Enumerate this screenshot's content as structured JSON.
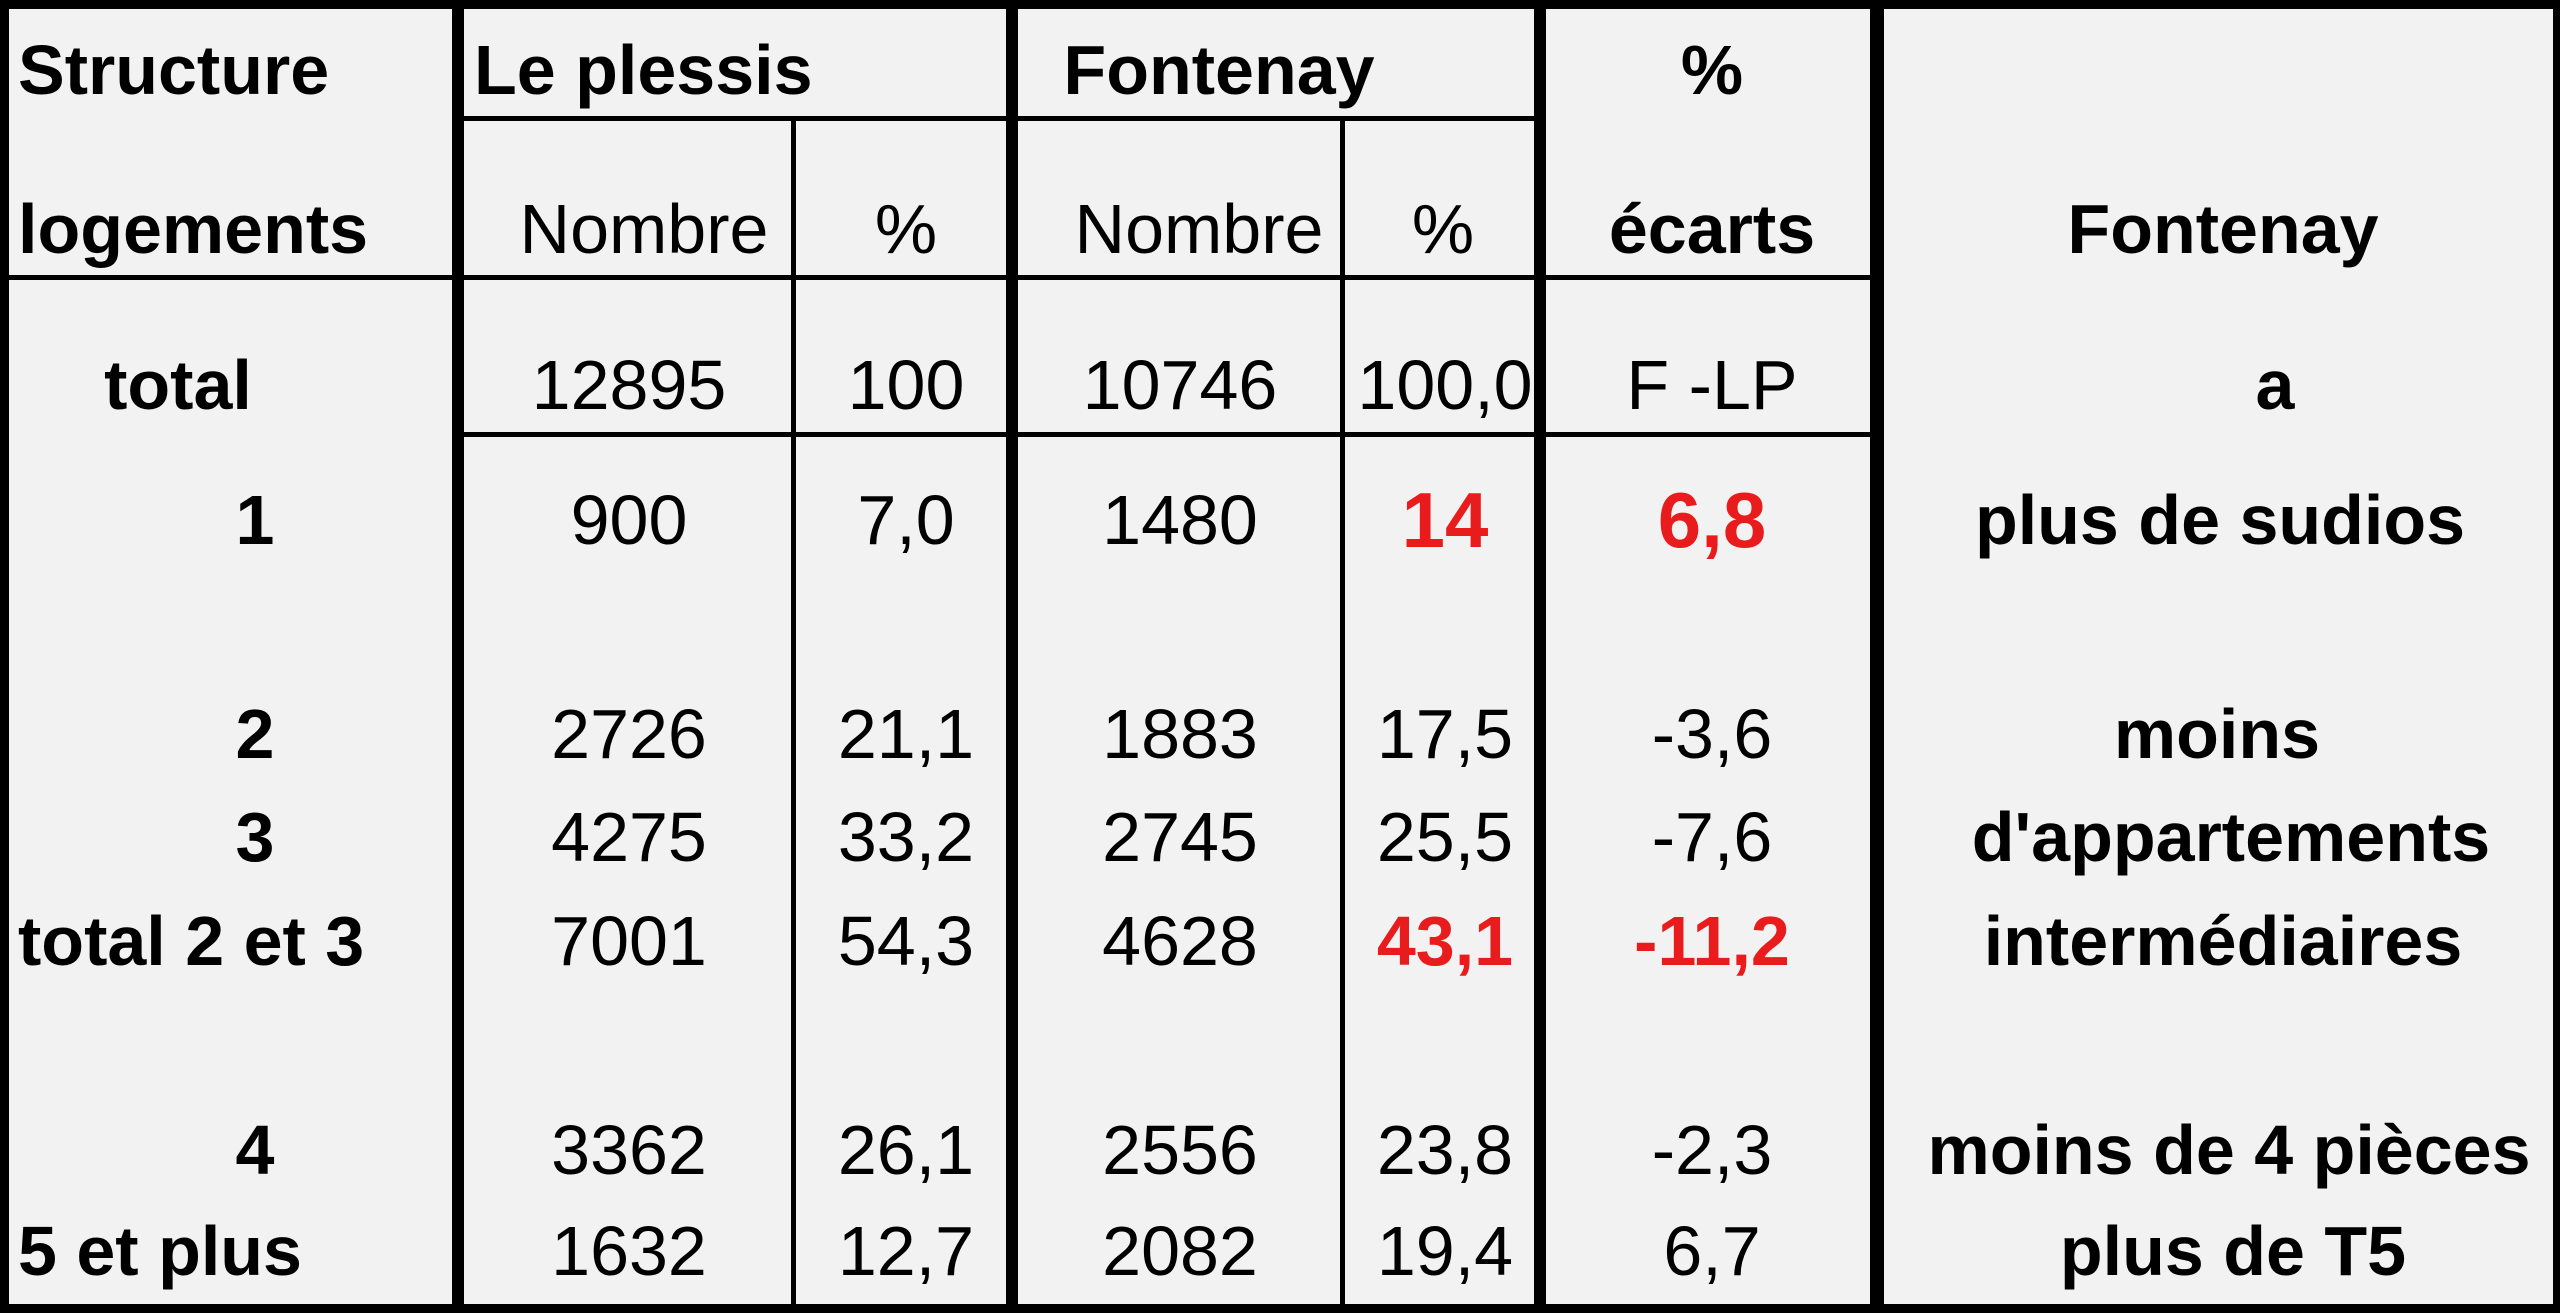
{
  "headers": {
    "structure_line1": "Structure",
    "structure_line2": "logements",
    "le_plessis": "Le plessis",
    "fontenay": "Fontenay",
    "pct_line1": "%",
    "pct_line2": "écarts",
    "lp_nombre": "Nombre",
    "lp_pct": "%",
    "f_nombre": "Nombre",
    "f_pct": "%",
    "comment": "Fontenay"
  },
  "total_row": {
    "label": "total",
    "lp_nombre": "12895",
    "lp_pct": "100",
    "f_nombre": "10746",
    "f_pct": "100,0",
    "ecart": "F -LP",
    "comment": "a"
  },
  "rows": [
    {
      "label": "1",
      "lp_nombre": "900",
      "lp_pct": "7,0",
      "f_nombre": "1480",
      "f_pct": "14",
      "ecart": "6,8"
    },
    {
      "label": "2",
      "lp_nombre": "2726",
      "lp_pct": "21,1",
      "f_nombre": "1883",
      "f_pct": "17,5",
      "ecart": "-3,6"
    },
    {
      "label": "3",
      "lp_nombre": "4275",
      "lp_pct": "33,2",
      "f_nombre": "2745",
      "f_pct": "25,5",
      "ecart": "-7,6"
    },
    {
      "label": "total 2 et 3",
      "lp_nombre": "7001",
      "lp_pct": "54,3",
      "f_nombre": "4628",
      "f_pct": "43,1",
      "ecart": "-11,2"
    },
    {
      "label": "4",
      "lp_nombre": "3362",
      "lp_pct": "26,1",
      "f_nombre": "2556",
      "f_pct": "23,8",
      "ecart": "-2,3"
    },
    {
      "label": "5 et plus",
      "lp_nombre": "1632",
      "lp_pct": "12,7",
      "f_nombre": "2082",
      "f_pct": "19,4",
      "ecart": "6,7"
    }
  ],
  "comments": {
    "studios": "plus  de sudios",
    "moins": "moins",
    "appartements": "d'appartements",
    "intermediaires": "intermédiaires",
    "moins4": "moins de 4 pièces",
    "plusT5": "plus de T5"
  },
  "colors": {
    "highlight": "#e81c1c",
    "background": "#f2f2f2",
    "lines": "#000000"
  }
}
